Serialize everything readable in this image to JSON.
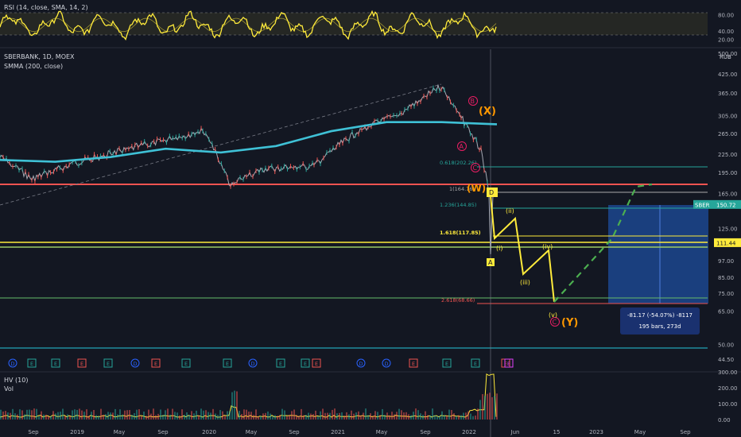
{
  "rsi_pane": {
    "label": "RSI (14, close, SMA, 14, 2)",
    "axis_ticks": [
      {
        "value": 80,
        "text": "80.00"
      },
      {
        "value": 40,
        "text": "40.00"
      },
      {
        "value": 20,
        "text": "20.00"
      }
    ]
  },
  "price_pane": {
    "symbol_label": "SBERBANK, 1D, MOEX",
    "indicator_label": "SMMA (200, close)",
    "currency": "RUB",
    "axis_ticks": [
      {
        "value": 500,
        "text": "500.00"
      },
      {
        "value": 425,
        "text": "425.00"
      },
      {
        "value": 365,
        "text": "365.00"
      },
      {
        "value": 305,
        "text": "305.00"
      },
      {
        "value": 265,
        "text": "265.00"
      },
      {
        "value": 225,
        "text": "225.00"
      },
      {
        "value": 195,
        "text": "195.00"
      },
      {
        "value": 165,
        "text": "165.00"
      },
      {
        "value": 125,
        "text": "125.00"
      },
      {
        "value": 97,
        "text": "97.00"
      },
      {
        "value": 85,
        "text": "85.00"
      },
      {
        "value": 75,
        "text": "75.00"
      },
      {
        "value": 65,
        "text": "65.00"
      },
      {
        "value": 50,
        "text": "50.00"
      },
      {
        "value": 44.5,
        "text": "44.50"
      }
    ],
    "price_tags": [
      {
        "text": "SBER",
        "value": 150.72,
        "value_text": "150.72",
        "color": "#26a69a"
      },
      {
        "text": "",
        "value": 111.44,
        "value_text": "111.44",
        "color": "#ffeb3b"
      }
    ],
    "fib_labels": [
      {
        "text": "0.618(202.26)",
        "value": 202.26
      },
      {
        "text": "1(164.76)",
        "value": 164.76
      },
      {
        "text": "1.236(144.85)",
        "value": 144.85
      },
      {
        "text": "1.618(117.85)",
        "value": 117.85
      },
      {
        "text": "2.618(68.66)",
        "value": 68.66
      }
    ],
    "wave_labels": [
      "(X)",
      "(W)",
      "(Y)",
      "A",
      "B",
      "C",
      "(i)",
      "(ii)",
      "(iii)",
      "(iv)",
      "(v)",
      "D"
    ],
    "measure_box": {
      "line1": "-81.17 (-54.07%) -8117",
      "line2": "195 bars, 273d"
    },
    "event_markers": [
      "D",
      "E",
      "E",
      "E",
      "E",
      "D",
      "E",
      "E",
      "E",
      "D",
      "E",
      "E",
      "E",
      "D",
      "D",
      "E",
      "E",
      "E",
      "E",
      "E",
      "E"
    ]
  },
  "volume_pane": {
    "label1": "HV (10)",
    "label2": "Vol",
    "axis_ticks": [
      {
        "value": 300,
        "text": "300.00"
      },
      {
        "value": 200,
        "text": "200.00"
      },
      {
        "value": 100,
        "text": "100.00"
      },
      {
        "value": 0,
        "text": "0.00"
      }
    ]
  },
  "time_axis": [
    "Sep",
    "2019",
    "May",
    "Sep",
    "2020",
    "May",
    "Sep",
    "2021",
    "May",
    "Sep",
    "2022",
    "Jun",
    "15",
    "2023",
    "May",
    "Sep"
  ],
  "colors": {
    "background": "#131722",
    "rsi_line": "#ffeb3b",
    "price_up": "#26a69a",
    "price_down": "#ef5350",
    "smma": "#3fc1d6",
    "projection": "#4caf50",
    "forecast_box": "#1e4d9e"
  },
  "chart_data": {
    "type": "line",
    "title": "SBERBANK, 1D, MOEX",
    "series": [
      {
        "name": "SMMA (200, close)",
        "x": [
          "2018-08",
          "2019-01",
          "2019-06",
          "2020-01",
          "2020-06",
          "2021-01",
          "2021-06",
          "2021-10",
          "2022-01",
          "2022-03"
        ],
        "values": [
          215,
          212,
          220,
          235,
          228,
          240,
          270,
          290,
          290,
          285
        ]
      },
      {
        "name": "SBERBANK",
        "x": [
          "2018-08",
          "2018-11",
          "2019-03",
          "2019-07",
          "2020-01",
          "2020-03",
          "2020-06",
          "2020-10",
          "2021-02",
          "2021-06",
          "2021-10",
          "2021-12",
          "2022-02",
          "2022-03"
        ],
        "values": [
          220,
          185,
          210,
          230,
          270,
          175,
          200,
          205,
          275,
          310,
          385,
          300,
          230,
          150.72
        ]
      }
    ],
    "projection": {
      "x": [
        "2022-03",
        "2022-07",
        "2022-12",
        "2023-04",
        "2023-07"
      ],
      "values": [
        150.72,
        117.85,
        68.66,
        120,
        175
      ]
    },
    "ylim": [
      44.5,
      500
    ],
    "log_scale": true
  }
}
